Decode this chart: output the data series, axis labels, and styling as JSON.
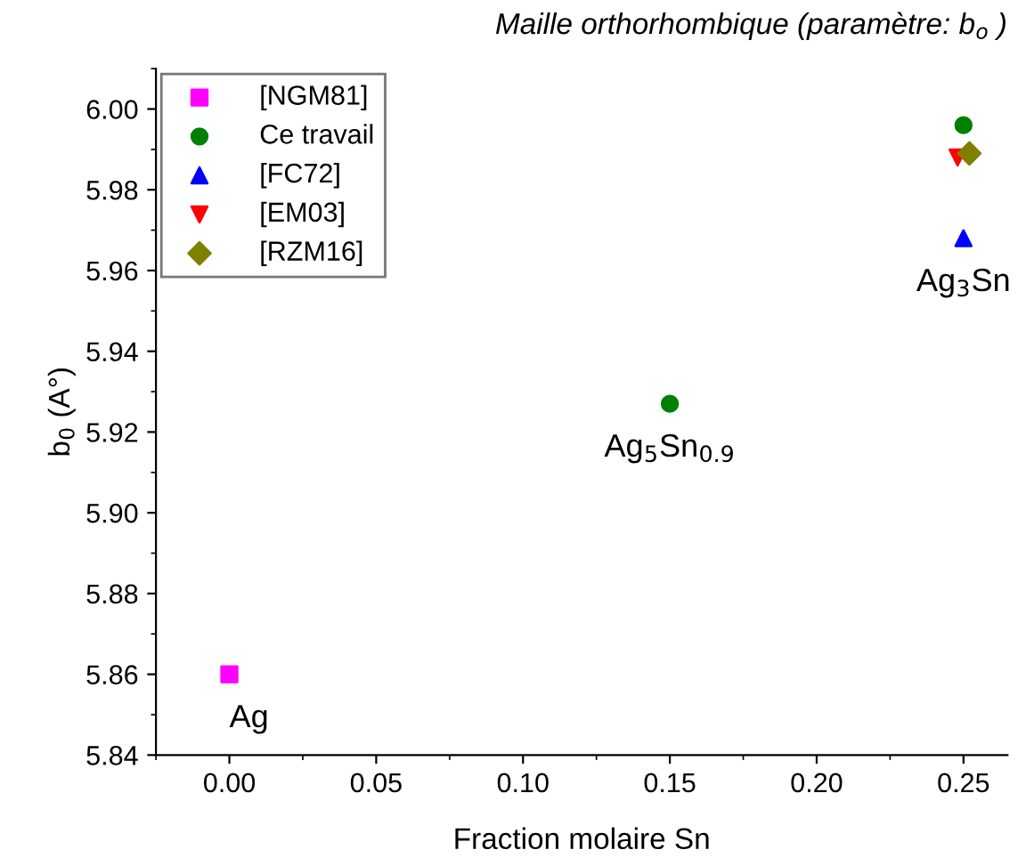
{
  "chart_data": {
    "type": "scatter",
    "title": "Maille orthorhombique (paramètre: b$_{o}$ )",
    "xlabel": "Fraction molaire Sn",
    "ylabel": "b$_{0}$ (A°)",
    "xlim": [
      -0.025,
      0.265
    ],
    "xticks": [
      {
        "value": 0,
        "label": "0.00"
      },
      {
        "value": 0.05,
        "label": "0.05"
      },
      {
        "value": 0.1,
        "label": "0.10"
      },
      {
        "value": 0.15,
        "label": "0.15"
      },
      {
        "value": 0.2,
        "label": "0.20"
      },
      {
        "value": 0.25,
        "label": "0.25"
      }
    ],
    "ylim": [
      5.84,
      6.01
    ],
    "yticks": [
      {
        "value": 5.84,
        "label": "5.84"
      },
      {
        "value": 5.86,
        "label": "5.86"
      },
      {
        "value": 5.88,
        "label": "5.88"
      },
      {
        "value": 5.9,
        "label": "5.90"
      },
      {
        "value": 5.92,
        "label": "5.92"
      },
      {
        "value": 5.94,
        "label": "5.94"
      },
      {
        "value": 5.96,
        "label": "5.96"
      },
      {
        "value": 5.98,
        "label": "5.98"
      },
      {
        "value": 6.0,
        "label": "6.00"
      }
    ],
    "legend": "top left",
    "grid": false,
    "series": [
      {
        "name": "[NGM81]",
        "color": "#ff00ff",
        "marker": "square",
        "x": [
          0
        ],
        "values": [
          5.86
        ]
      },
      {
        "name": "Ce travail",
        "color": "#008000",
        "marker": "circle",
        "x": [
          0.15,
          0.25
        ],
        "values": [
          5.927,
          5.996
        ]
      },
      {
        "name": "[FC72]",
        "color": "#0000ff",
        "marker": "triangle",
        "x": [
          0.25
        ],
        "values": [
          5.968
        ]
      },
      {
        "name": "[EM03]",
        "color": "#ff0000",
        "marker": "triangle_down",
        "x": [
          0.248
        ],
        "values": [
          5.988
        ]
      },
      {
        "name": "[RZM16]",
        "color": "#808000",
        "marker": "diamond",
        "x": [
          0.252
        ],
        "values": [
          5.989
        ]
      }
    ],
    "annotations": [
      {
        "text": "Ag",
        "x": 0,
        "y": 5.86
      },
      {
        "text": "Ag$_{5}$Sn$_{0.9}$",
        "x": 0.15,
        "y": 5.927
      },
      {
        "text": "Ag$_{3}$Sn",
        "x": 0.25,
        "y": 5.968
      }
    ]
  }
}
